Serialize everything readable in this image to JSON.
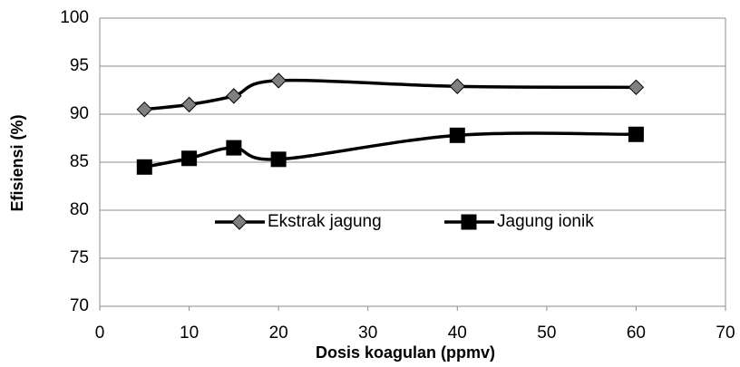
{
  "chart_data": {
    "type": "line",
    "x_label": "Dosis koagulan (ppmv)",
    "y_label": "Efisiensi (%)",
    "x": [
      5,
      10,
      15,
      20,
      40,
      60
    ],
    "series": [
      {
        "name": "Ekstrak jagung",
        "color": "#000000",
        "marker": "diamond",
        "marker_color": "#808080",
        "values": [
          90.5,
          91.0,
          91.9,
          93.5,
          92.9,
          92.8
        ]
      },
      {
        "name": "Jagung ionik",
        "color": "#000000",
        "marker": "square",
        "marker_color": "#000000",
        "values": [
          84.5,
          85.4,
          86.5,
          85.3,
          87.8,
          87.9
        ]
      }
    ],
    "xlim": [
      0,
      70
    ],
    "xticks": [
      0,
      10,
      20,
      30,
      40,
      50,
      60,
      70
    ],
    "ylim": [
      70,
      100
    ],
    "yticks": [
      70,
      75,
      80,
      85,
      90,
      95,
      100
    ],
    "grid": true,
    "smooth": true,
    "legend": "center"
  }
}
